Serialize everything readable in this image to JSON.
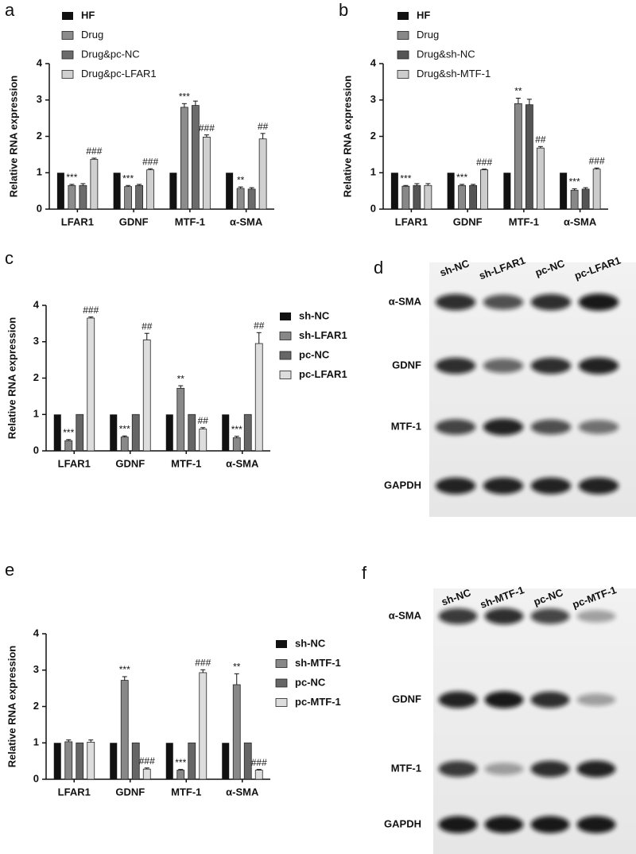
{
  "chart_data": [
    {
      "type": "bar",
      "panel": "a",
      "y_label": "Relative RNA expression",
      "categories": [
        "LFAR1",
        "GDNF",
        "MTF-1",
        "α-SMA"
      ],
      "ylim": [
        0,
        4
      ],
      "yticks": [
        0,
        1,
        2,
        3,
        4
      ],
      "series": [
        {
          "name": "HF",
          "color": "#111111",
          "values": [
            1,
            1,
            1,
            1
          ]
        },
        {
          "name": "Drug",
          "color": "#8c8c8c",
          "values": [
            0.65,
            0.62,
            2.8,
            0.57
          ],
          "errors": [
            0.03,
            0.03,
            0.1,
            0.04
          ],
          "annotations": [
            "***",
            "***",
            "***",
            "**"
          ]
        },
        {
          "name": "Drug&pc-NC",
          "color": "#6b6b6b",
          "values": [
            0.65,
            0.65,
            2.85,
            0.55
          ],
          "errors": [
            0.05,
            0.03,
            0.12,
            0.04
          ]
        },
        {
          "name": "Drug&pc-LFAR1",
          "color": "#d0d0d0",
          "values": [
            1.37,
            1.08,
            1.98,
            1.93
          ],
          "errors": [
            0.03,
            0.03,
            0.06,
            0.15
          ],
          "annotations": [
            "###",
            "###",
            "###",
            "##"
          ]
        }
      ]
    },
    {
      "type": "bar",
      "panel": "b",
      "y_label": "Relative RNA expression",
      "categories": [
        "LFAR1",
        "GDNF",
        "MTF-1",
        "α-SMA"
      ],
      "ylim": [
        0,
        4
      ],
      "yticks": [
        0,
        1,
        2,
        3,
        4
      ],
      "series": [
        {
          "name": "HF",
          "color": "#111111",
          "values": [
            1,
            1,
            1,
            1
          ]
        },
        {
          "name": "Drug",
          "color": "#888888",
          "values": [
            0.63,
            0.65,
            2.9,
            0.52
          ],
          "errors": [
            0.02,
            0.03,
            0.15,
            0.04
          ],
          "annotations": [
            "***",
            "***",
            "**",
            "***"
          ]
        },
        {
          "name": "Drug&sh-NC",
          "color": "#555555",
          "values": [
            0.65,
            0.65,
            2.87,
            0.55
          ],
          "errors": [
            0.05,
            0.03,
            0.15,
            0.04
          ]
        },
        {
          "name": "Drug&sh-MTF-1",
          "color": "#cccccc",
          "values": [
            0.65,
            1.08,
            1.68,
            1.1
          ],
          "errors": [
            0.05,
            0.02,
            0.04,
            0.03
          ],
          "annotations": [
            null,
            "###",
            "##",
            "###"
          ]
        }
      ]
    },
    {
      "type": "bar",
      "panel": "c",
      "y_label": "Relative RNA expression",
      "categories": [
        "LFAR1",
        "GDNF",
        "MTF-1",
        "α-SMA"
      ],
      "ylim": [
        0,
        4
      ],
      "yticks": [
        0,
        1,
        2,
        3,
        4
      ],
      "series": [
        {
          "name": "sh-NC",
          "color": "#111111",
          "values": [
            1,
            1,
            1,
            1
          ]
        },
        {
          "name": "sh-LFAR1",
          "color": "#888888",
          "values": [
            0.28,
            0.38,
            1.72,
            0.36
          ],
          "errors": [
            0.03,
            0.03,
            0.07,
            0.04
          ],
          "annotations": [
            "***",
            "***",
            "**",
            "***"
          ]
        },
        {
          "name": "pc-NC",
          "color": "#666666",
          "values": [
            1,
            1,
            1,
            1
          ]
        },
        {
          "name": "pc-LFAR1",
          "color": "#dddddd",
          "values": [
            3.65,
            3.05,
            0.6,
            2.95
          ],
          "errors": [
            0.03,
            0.18,
            0.04,
            0.3
          ],
          "annotations": [
            "###",
            "##",
            "##",
            "##"
          ]
        }
      ]
    },
    {
      "type": "bar",
      "panel": "e",
      "y_label": "Relative RNA expression",
      "categories": [
        "LFAR1",
        "GDNF",
        "MTF-1",
        "α-SMA"
      ],
      "ylim": [
        0,
        4
      ],
      "yticks": [
        0,
        1,
        2,
        3,
        4
      ],
      "series": [
        {
          "name": "sh-NC",
          "color": "#111111",
          "values": [
            1,
            1,
            1,
            1
          ]
        },
        {
          "name": "sh-MTF-1",
          "color": "#888888",
          "values": [
            1.03,
            2.72,
            0.25,
            2.6
          ],
          "errors": [
            0.05,
            0.1,
            0.02,
            0.3
          ],
          "annotations": [
            null,
            "***",
            "***",
            "**"
          ]
        },
        {
          "name": "pc-NC",
          "color": "#666666",
          "values": [
            1,
            1,
            1,
            1
          ]
        },
        {
          "name": "pc-MTF-1",
          "color": "#dddddd",
          "values": [
            1.02,
            0.28,
            2.93,
            0.25
          ],
          "errors": [
            0.06,
            0.03,
            0.08,
            0.02
          ],
          "annotations": [
            null,
            "###",
            "###",
            "###"
          ]
        }
      ]
    }
  ],
  "blots": [
    {
      "panel": "d",
      "lanes": [
        "sh-NC",
        "sh-LFAR1",
        "pc-NC",
        "pc-LFAR1"
      ],
      "proteins": [
        "α-SMA",
        "GDNF",
        "MTF-1",
        "GAPDH"
      ]
    },
    {
      "panel": "f",
      "lanes": [
        "sh-NC",
        "sh-MTF-1",
        "pc-NC",
        "pc-MTF-1"
      ],
      "proteins": [
        "α-SMA",
        "GDNF",
        "MTF-1",
        "GAPDH"
      ]
    }
  ]
}
